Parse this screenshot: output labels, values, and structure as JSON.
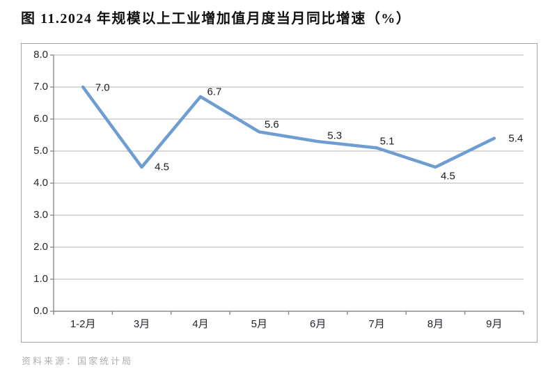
{
  "figure": {
    "title": "图 11.2024 年规模以上工业增加值月度当月同比增速（%）",
    "source": "资料来源：国家统计局"
  },
  "chart_data": {
    "type": "line",
    "title": "图 11.2024 年规模以上工业增加值月度当月同比增速（%）",
    "categories": [
      "1-2月",
      "3月",
      "4月",
      "5月",
      "6月",
      "7月",
      "8月",
      "9月"
    ],
    "values": [
      7.0,
      4.5,
      6.7,
      5.6,
      5.3,
      5.1,
      4.5,
      5.4
    ],
    "data_labels": [
      "7.0",
      "4.5",
      "6.7",
      "5.6",
      "5.3",
      "5.1",
      "4.5",
      "5.4"
    ],
    "xlabel": "",
    "ylabel": "",
    "ylim": [
      0.0,
      8.0
    ],
    "ytick_step": 1.0,
    "yticks": [
      "0.0",
      "1.0",
      "2.0",
      "3.0",
      "4.0",
      "5.0",
      "6.0",
      "7.0",
      "8.0"
    ],
    "grid": true,
    "legend_position": "none",
    "source": "资料来源：国家统计局",
    "colors": {
      "line": "#6D9DD1",
      "gridline": "#b3b3b3",
      "axis": "#8c8c8c",
      "tick_text": "#262626",
      "border": "#a3a3a3",
      "source_text": "#aeaeae"
    }
  }
}
